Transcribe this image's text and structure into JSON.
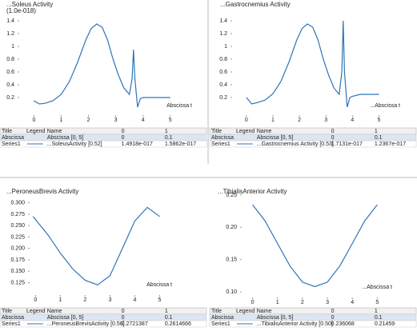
{
  "panels": [
    {
      "title": "...Soleus Activity",
      "subtitle": "(1.0e-018)",
      "xlabel": "Abscissa t",
      "xlim": [
        -0.6,
        5.8
      ],
      "ylim": [
        0,
        1.5
      ],
      "xticks": [
        0,
        1,
        2,
        3,
        4,
        5
      ],
      "yticks": [
        0.2,
        0.4,
        0.6,
        0.8,
        1,
        1.2,
        1.4
      ],
      "x": [
        0,
        0.2,
        0.4,
        0.7,
        1,
        1.3,
        1.6,
        1.9,
        2.1,
        2.3,
        2.5,
        2.7,
        2.9,
        3.1,
        3.3,
        3.5,
        3.6,
        3.65,
        3.7,
        3.8,
        3.9,
        4,
        4.3,
        4.6,
        5
      ],
      "y": [
        0.15,
        0.1,
        0.11,
        0.15,
        0.25,
        0.45,
        0.75,
        1.1,
        1.28,
        1.35,
        1.3,
        1.1,
        0.8,
        0.55,
        0.35,
        0.25,
        0.5,
        0.95,
        0.5,
        0.05,
        0.18,
        0.2,
        0.2,
        0.2,
        0.2
      ],
      "table": {
        "header": [
          "Title",
          "Legend",
          "Name",
          "0",
          "1"
        ],
        "rows": [
          [
            "Abscissa",
            "Abscissa [0, 5]",
            "0",
            "0.1"
          ],
          [
            "Series1",
            "...SoleusActivity [0.52]",
            "1.4918e-017",
            "1.5862e-017"
          ]
        ]
      }
    },
    {
      "title": "...Gastrocnemius Activity",
      "xlabel": "...Abscissa t",
      "xlim": [
        -0.6,
        5.8
      ],
      "ylim": [
        0,
        1.5
      ],
      "xticks": [
        0,
        1,
        2,
        3,
        4,
        5
      ],
      "yticks": [
        0.2,
        0.4,
        0.6,
        0.8,
        1,
        1.2,
        1.4
      ],
      "x": [
        0,
        0.2,
        0.4,
        0.7,
        1,
        1.3,
        1.6,
        1.9,
        2.1,
        2.3,
        2.5,
        2.7,
        2.9,
        3.1,
        3.3,
        3.5,
        3.6,
        3.65,
        3.7,
        3.8,
        3.9,
        4,
        4.3,
        4.6,
        5
      ],
      "y": [
        0.2,
        0.1,
        0.12,
        0.16,
        0.26,
        0.45,
        0.75,
        1.1,
        1.28,
        1.35,
        1.3,
        1.1,
        0.8,
        0.55,
        0.35,
        0.25,
        0.6,
        1.4,
        0.6,
        0.05,
        0.2,
        0.22,
        0.25,
        0.25,
        0.25
      ],
      "table": {
        "header": [
          "Title",
          "Legend",
          "Name",
          "0",
          "1"
        ],
        "rows": [
          [
            "Abscissa",
            "Abscissa [0, 5]",
            "0",
            "0.1"
          ],
          [
            "Series1",
            "...Gastrocnemius Activity [0.53]",
            "1.7131e-017",
            "1.2367e-017"
          ]
        ]
      }
    },
    {
      "title": "...PeroneusBrevis Activity",
      "xlabel": "Abscissa t",
      "xlim": [
        -0.3,
        5.5
      ],
      "ylim": [
        0.11,
        0.31
      ],
      "xticks": [
        0,
        1,
        2,
        3,
        4,
        5
      ],
      "yticks": [
        {
          "value": 0.125,
          "label": "0.125"
        },
        {
          "value": 0.15,
          "label": "0.150"
        },
        {
          "value": 0.175,
          "label": "0.175"
        },
        {
          "value": 0.2,
          "label": "0.200"
        },
        {
          "value": 0.225,
          "label": "0.225"
        },
        {
          "value": 0.25,
          "label": "0.250"
        },
        {
          "value": 0.275,
          "label": "0.275"
        },
        {
          "value": 0.3,
          "label": "0.300"
        }
      ],
      "x": [
        -0.1,
        0.5,
        1,
        1.5,
        2,
        2.5,
        3,
        3.5,
        4,
        4.5,
        5
      ],
      "y": [
        0.27,
        0.23,
        0.19,
        0.155,
        0.13,
        0.12,
        0.14,
        0.2,
        0.26,
        0.29,
        0.27
      ],
      "table": {
        "header": [
          "Title",
          "Legend",
          "Name",
          "0",
          "1"
        ],
        "rows": [
          [
            "Abscissa",
            "Abscissa [0, 5]",
            "0",
            "0.1"
          ],
          [
            "Series1",
            "...PeroneusBrevisActivity [0.56]",
            "0.2721387",
            "0.2614666"
          ]
        ]
      }
    },
    {
      "title": "...TibialisAnterior Activity",
      "xlabel": "...Abscissa t",
      "xlim": [
        -0.5,
        5.6
      ],
      "ylim": [
        0.1,
        0.245
      ],
      "xticks": [
        0,
        1,
        2,
        3,
        4,
        5
      ],
      "yticks": [
        {
          "value": 0.1,
          "label": "0.10"
        },
        {
          "value": 0.15,
          "label": "0.15"
        },
        {
          "value": 0.2,
          "label": "0.20"
        },
        {
          "value": 0.25,
          "label": "0.25"
        }
      ],
      "x": [
        0,
        0.5,
        1,
        1.5,
        2,
        2.5,
        3,
        3.5,
        4,
        4.5,
        5
      ],
      "y": [
        0.235,
        0.21,
        0.175,
        0.14,
        0.115,
        0.108,
        0.115,
        0.14,
        0.175,
        0.21,
        0.235
      ],
      "table": {
        "header": [
          "Title",
          "Legend",
          "Name",
          "0",
          "1"
        ],
        "rows": [
          [
            "Abscissa",
            "Abscissa [0, 5]",
            "0",
            "0.1"
          ],
          [
            "Series1",
            "...TibialisAnterior Activity [0.50]",
            "0.236068",
            "0.21459"
          ]
        ]
      }
    }
  ]
}
